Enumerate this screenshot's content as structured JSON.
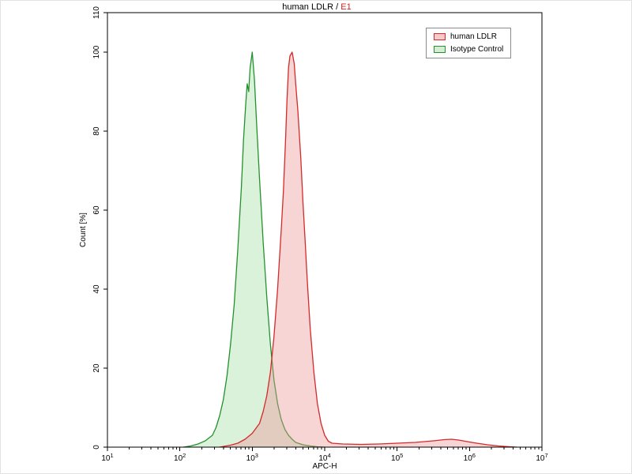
{
  "chart_data": {
    "type": "area",
    "subtype": "flow-cytometry-overlay-histogram",
    "title": {
      "main": "human LDLR / ",
      "gate": "E1",
      "gate_color": "#cc2222"
    },
    "xlabel": "APC-H",
    "ylabel": "Count [%]",
    "x_scale": "log10",
    "xlog_range": [
      1,
      7
    ],
    "x_ticks": [
      1,
      2,
      3,
      4,
      5,
      6,
      7
    ],
    "ylim": [
      0,
      110
    ],
    "y_ticks": [
      0,
      20,
      40,
      60,
      80,
      100,
      110
    ],
    "grid": false,
    "legend_position": "top-right-inside",
    "legend": [
      {
        "label": "human LDLR",
        "stroke": "#d42a2a",
        "fill_solid": "#f7caca"
      },
      {
        "label": "Isotype Control",
        "stroke": "#23922e",
        "fill_solid": "#d5edd5"
      }
    ],
    "series": [
      {
        "name": "human LDLR",
        "stroke": "#d42a2a",
        "fill": "rgba(235,150,150,0.40)",
        "peak_x_log10": 3.55,
        "peak_y": 100,
        "points": [
          [
            2.55,
            0
          ],
          [
            2.7,
            0.5
          ],
          [
            2.8,
            1
          ],
          [
            2.9,
            2
          ],
          [
            3.0,
            3.5
          ],
          [
            3.1,
            6
          ],
          [
            3.15,
            9
          ],
          [
            3.2,
            13
          ],
          [
            3.25,
            19
          ],
          [
            3.3,
            28
          ],
          [
            3.35,
            40
          ],
          [
            3.4,
            55
          ],
          [
            3.43,
            65
          ],
          [
            3.46,
            78
          ],
          [
            3.48,
            88
          ],
          [
            3.5,
            96
          ],
          [
            3.52,
            99
          ],
          [
            3.55,
            100
          ],
          [
            3.58,
            97
          ],
          [
            3.6,
            92
          ],
          [
            3.63,
            85
          ],
          [
            3.67,
            73
          ],
          [
            3.7,
            62
          ],
          [
            3.73,
            52
          ],
          [
            3.76,
            42
          ],
          [
            3.8,
            30
          ],
          [
            3.85,
            19
          ],
          [
            3.9,
            11
          ],
          [
            3.95,
            6
          ],
          [
            4.0,
            3
          ],
          [
            4.05,
            1.5
          ],
          [
            4.1,
            1
          ],
          [
            4.25,
            0.8
          ],
          [
            4.5,
            0.7
          ],
          [
            4.75,
            0.8
          ],
          [
            5.0,
            1
          ],
          [
            5.25,
            1.2
          ],
          [
            5.5,
            1.6
          ],
          [
            5.65,
            1.9
          ],
          [
            5.75,
            2
          ],
          [
            5.85,
            1.8
          ],
          [
            6.0,
            1.3
          ],
          [
            6.1,
            1
          ],
          [
            6.25,
            0.6
          ],
          [
            6.4,
            0.3
          ],
          [
            6.55,
            0.1
          ],
          [
            6.65,
            0
          ]
        ]
      },
      {
        "name": "Isotype Control",
        "stroke": "#23922e",
        "fill": "rgba(150,215,150,0.35)",
        "peak_x_log10": 3.0,
        "peak_y": 100,
        "points": [
          [
            2.05,
            0
          ],
          [
            2.15,
            0.3
          ],
          [
            2.25,
            0.8
          ],
          [
            2.35,
            1.6
          ],
          [
            2.45,
            3
          ],
          [
            2.5,
            5
          ],
          [
            2.55,
            8
          ],
          [
            2.6,
            12
          ],
          [
            2.65,
            18
          ],
          [
            2.7,
            26
          ],
          [
            2.75,
            36
          ],
          [
            2.8,
            50
          ],
          [
            2.85,
            66
          ],
          [
            2.88,
            78
          ],
          [
            2.91,
            87
          ],
          [
            2.93,
            92
          ],
          [
            2.95,
            90
          ],
          [
            2.97,
            96
          ],
          [
            3.0,
            100
          ],
          [
            3.03,
            93
          ],
          [
            3.06,
            82
          ],
          [
            3.1,
            68
          ],
          [
            3.15,
            52
          ],
          [
            3.2,
            38
          ],
          [
            3.25,
            26
          ],
          [
            3.3,
            17
          ],
          [
            3.35,
            11
          ],
          [
            3.4,
            7
          ],
          [
            3.45,
            4.5
          ],
          [
            3.5,
            3
          ],
          [
            3.55,
            2
          ],
          [
            3.6,
            1.2
          ],
          [
            3.7,
            0.6
          ],
          [
            3.8,
            0.3
          ],
          [
            3.9,
            0.1
          ],
          [
            4.0,
            0
          ]
        ]
      }
    ]
  }
}
